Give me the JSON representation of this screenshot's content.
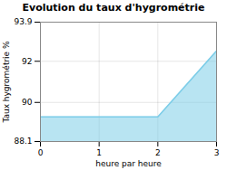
{
  "chart_data": {
    "type": "area",
    "title": "Evolution du taux d'hygrométrie",
    "xlabel": "heure par heure",
    "ylabel": "Taux hygrométrie %",
    "x": [
      0,
      1,
      2,
      3
    ],
    "values": [
      89.3,
      89.3,
      89.3,
      92.5
    ],
    "color": "#7dcde8",
    "xlim": [
      0,
      3
    ],
    "ylim": [
      88.1,
      93.9
    ],
    "xticks": [
      0,
      1,
      2,
      3
    ],
    "yticks": [
      88.1,
      90,
      92,
      93.9
    ],
    "grid": true
  }
}
